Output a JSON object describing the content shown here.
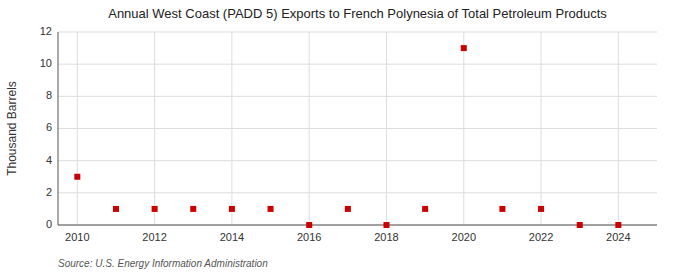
{
  "chart_data": {
    "type": "scatter",
    "title": "Annual West Coast (PADD 5) Exports to French Polynesia of Total Petroleum Products",
    "ylabel": "Thousand Barrels",
    "source": "Source: U.S. Energy Information Administration",
    "x": [
      2010,
      2011,
      2012,
      2013,
      2014,
      2015,
      2016,
      2017,
      2018,
      2019,
      2020,
      2021,
      2022,
      2023,
      2024
    ],
    "values": [
      3,
      1,
      1,
      1,
      1,
      1,
      0,
      1,
      0,
      1,
      11,
      1,
      1,
      0,
      0
    ],
    "color": "#cc0000",
    "marker": "square",
    "xlim": [
      2009.5,
      2025.0
    ],
    "xticks": [
      2010,
      2012,
      2014,
      2016,
      2018,
      2020,
      2022,
      2024
    ],
    "ylim": [
      0,
      12
    ],
    "yticks": [
      0,
      2,
      4,
      6,
      8,
      10,
      12
    ],
    "grid": true
  }
}
